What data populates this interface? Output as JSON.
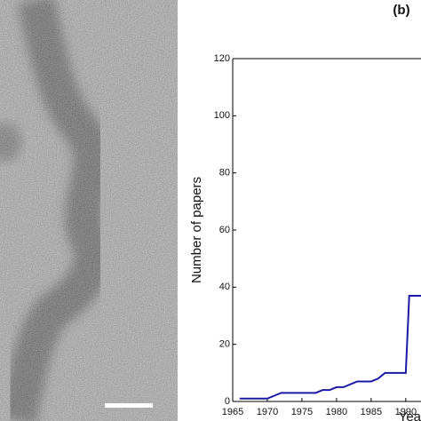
{
  "chart_data": {
    "type": "line",
    "title": "(b)",
    "ylabel": "Number of papers",
    "xlabel": "Yea",
    "x": [
      1966,
      1970,
      1972,
      1977,
      1978,
      1979,
      1980,
      1981,
      1983,
      1985,
      1986,
      1987,
      1990,
      1990.5,
      1992.2
    ],
    "series": [
      {
        "name": "papers",
        "color": "#1a1aa6",
        "values": [
          1,
          1,
          3,
          3,
          4,
          4,
          5,
          5,
          7,
          7,
          8,
          10,
          10,
          37,
          37
        ]
      }
    ],
    "xlim": [
      1965,
      1992.2
    ],
    "xticks": [
      1965,
      1970,
      1975,
      1980,
      1985,
      1990
    ],
    "ylim": [
      0,
      120
    ],
    "yticks": [
      0,
      20,
      40,
      60,
      80,
      100,
      120
    ]
  }
}
